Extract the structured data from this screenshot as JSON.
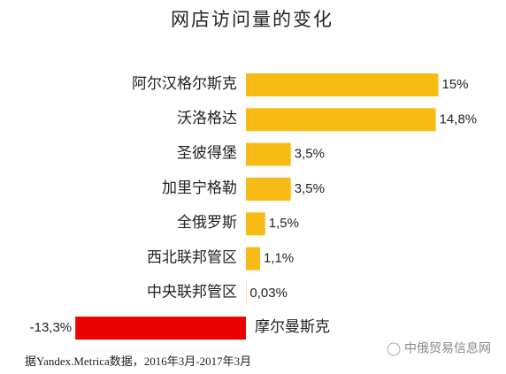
{
  "chart_data": {
    "type": "bar",
    "orientation": "horizontal",
    "title": "网店访问量的变化",
    "categories": [
      "阿尔汉格尔斯克",
      "沃洛格达",
      "圣彼得堡",
      "加里宁格勒",
      "全俄罗斯",
      "西北联邦管区",
      "中央联邦管区",
      "摩尔曼斯克"
    ],
    "values": [
      15,
      14.8,
      3.5,
      3.5,
      1.5,
      1.1,
      0.03,
      -13.3
    ],
    "value_labels": [
      "15%",
      "14,8%",
      "3,5%",
      "3,5%",
      "1,5%",
      "1,1%",
      "0,03%",
      "-13,3%"
    ],
    "colors": [
      "#f8bb16",
      "#f8bb16",
      "#f8bb16",
      "#f8bb16",
      "#f8bb16",
      "#f8bb16",
      "#f8bb16",
      "#ee0000"
    ],
    "source": "据Yandex.Metrica数据，2016年3月-2017年3月",
    "watermark": "中俄贸易信息网"
  }
}
